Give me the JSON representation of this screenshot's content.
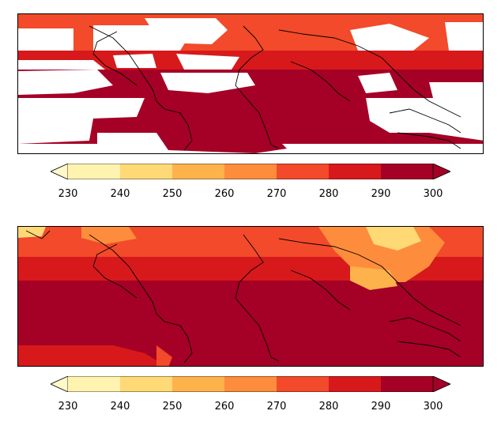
{
  "colorbar": {
    "tick_labels": [
      "230",
      "240",
      "250",
      "260",
      "270",
      "280",
      "290",
      "300"
    ],
    "bin_colors": [
      "#ffffcc",
      "#ffeda0",
      "#feb24c",
      "#fd8d3c",
      "#fc4e2a",
      "#e31a1c",
      "#bd0026",
      "#800026"
    ],
    "band_colors": [
      "#fff3b0",
      "#fed976",
      "#feb24c",
      "#fd8d3c",
      "#f24a2a",
      "#d7191c",
      "#a50026"
    ],
    "under_color": "#fff8c8",
    "over_color": "#a50026",
    "extend": "both"
  },
  "maps": [
    {
      "name": "top",
      "content": "partial coverage temperature field (white = missing data)",
      "coastline_color": "#000000"
    },
    {
      "name": "bottom",
      "content": "full coverage temperature field",
      "coastline_color": "#000000"
    }
  ]
}
